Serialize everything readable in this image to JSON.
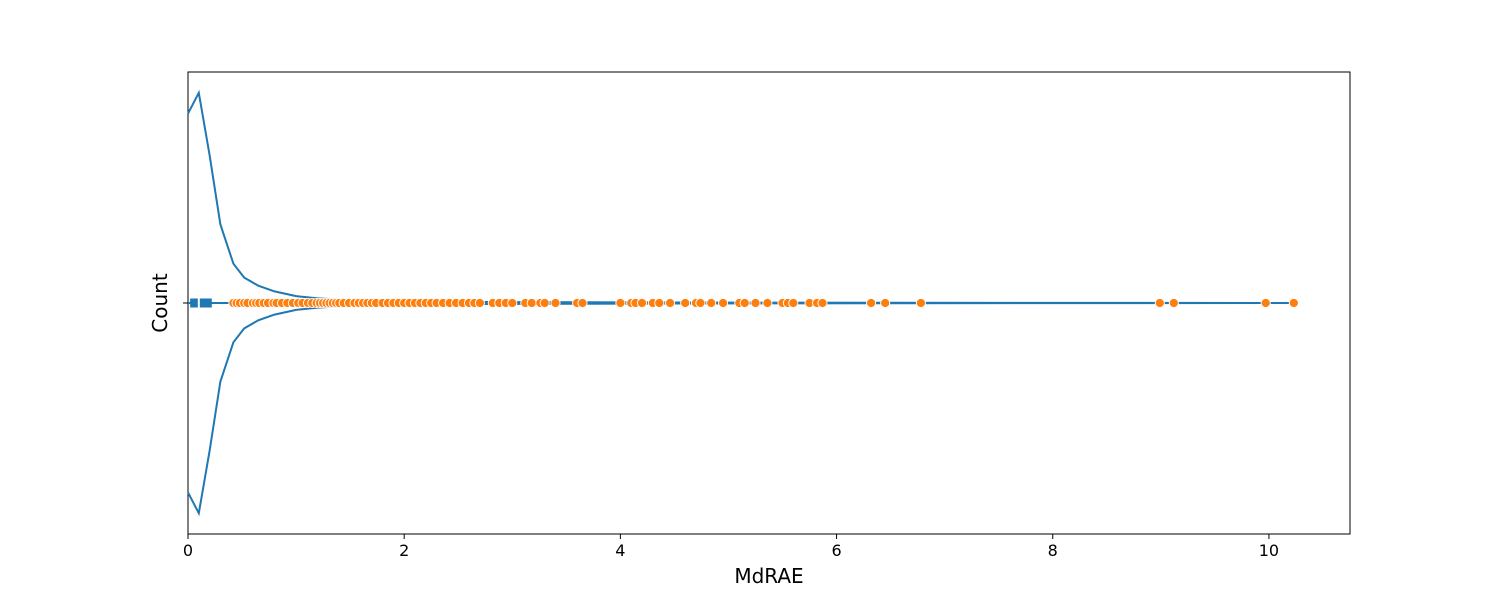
{
  "chart_data": {
    "type": "violin",
    "title": "",
    "xlabel": "MdRAE",
    "ylabel": "Count",
    "xlim": [
      0,
      10.75
    ],
    "xticks": [
      0,
      2,
      4,
      6,
      8,
      10
    ],
    "yticks_visible": false,
    "grid": false,
    "colors": {
      "violin": "#1f77b4",
      "points": "#ff7f0e",
      "point_edge": "#ffffff"
    },
    "violin": {
      "x": [
        0.0,
        0.1,
        0.2,
        0.3,
        0.42,
        0.52,
        0.65,
        0.8,
        1.0,
        1.2,
        1.5,
        2.0,
        3.0,
        4.5,
        6.5,
        8.5,
        10.23
      ],
      "density": [
        0.82,
        0.91,
        0.64,
        0.34,
        0.17,
        0.11,
        0.075,
        0.05,
        0.03,
        0.02,
        0.012,
        0.007,
        0.004,
        0.002,
        0.001,
        0.0005,
        0.0
      ],
      "box": {
        "q1": 0.02,
        "q3": 0.22,
        "median": 0.1
      },
      "whisker": [
        0.0,
        10.23
      ]
    },
    "points": [
      0.42,
      0.45,
      0.48,
      0.52,
      0.55,
      0.6,
      0.63,
      0.66,
      0.7,
      0.74,
      0.79,
      0.82,
      0.87,
      0.92,
      0.97,
      1.02,
      1.06,
      1.11,
      1.15,
      1.19,
      1.22,
      1.25,
      1.28,
      1.31,
      1.34,
      1.37,
      1.4,
      1.44,
      1.49,
      1.54,
      1.58,
      1.62,
      1.66,
      1.7,
      1.74,
      1.8,
      1.85,
      1.9,
      1.95,
      2.0,
      2.05,
      2.1,
      2.15,
      2.2,
      2.25,
      2.3,
      2.36,
      2.42,
      2.48,
      2.54,
      2.6,
      2.65,
      2.7,
      2.82,
      2.88,
      2.94,
      3.0,
      3.12,
      3.18,
      3.26,
      3.3,
      3.4,
      3.6,
      3.65,
      4.0,
      4.1,
      4.14,
      4.2,
      4.3,
      4.36,
      4.46,
      4.6,
      4.7,
      4.74,
      4.84,
      4.95,
      5.1,
      5.15,
      5.25,
      5.36,
      5.5,
      5.55,
      5.6,
      5.75,
      5.82,
      5.87,
      6.32,
      6.45,
      6.78,
      8.99,
      9.12,
      9.97,
      10.23
    ]
  }
}
